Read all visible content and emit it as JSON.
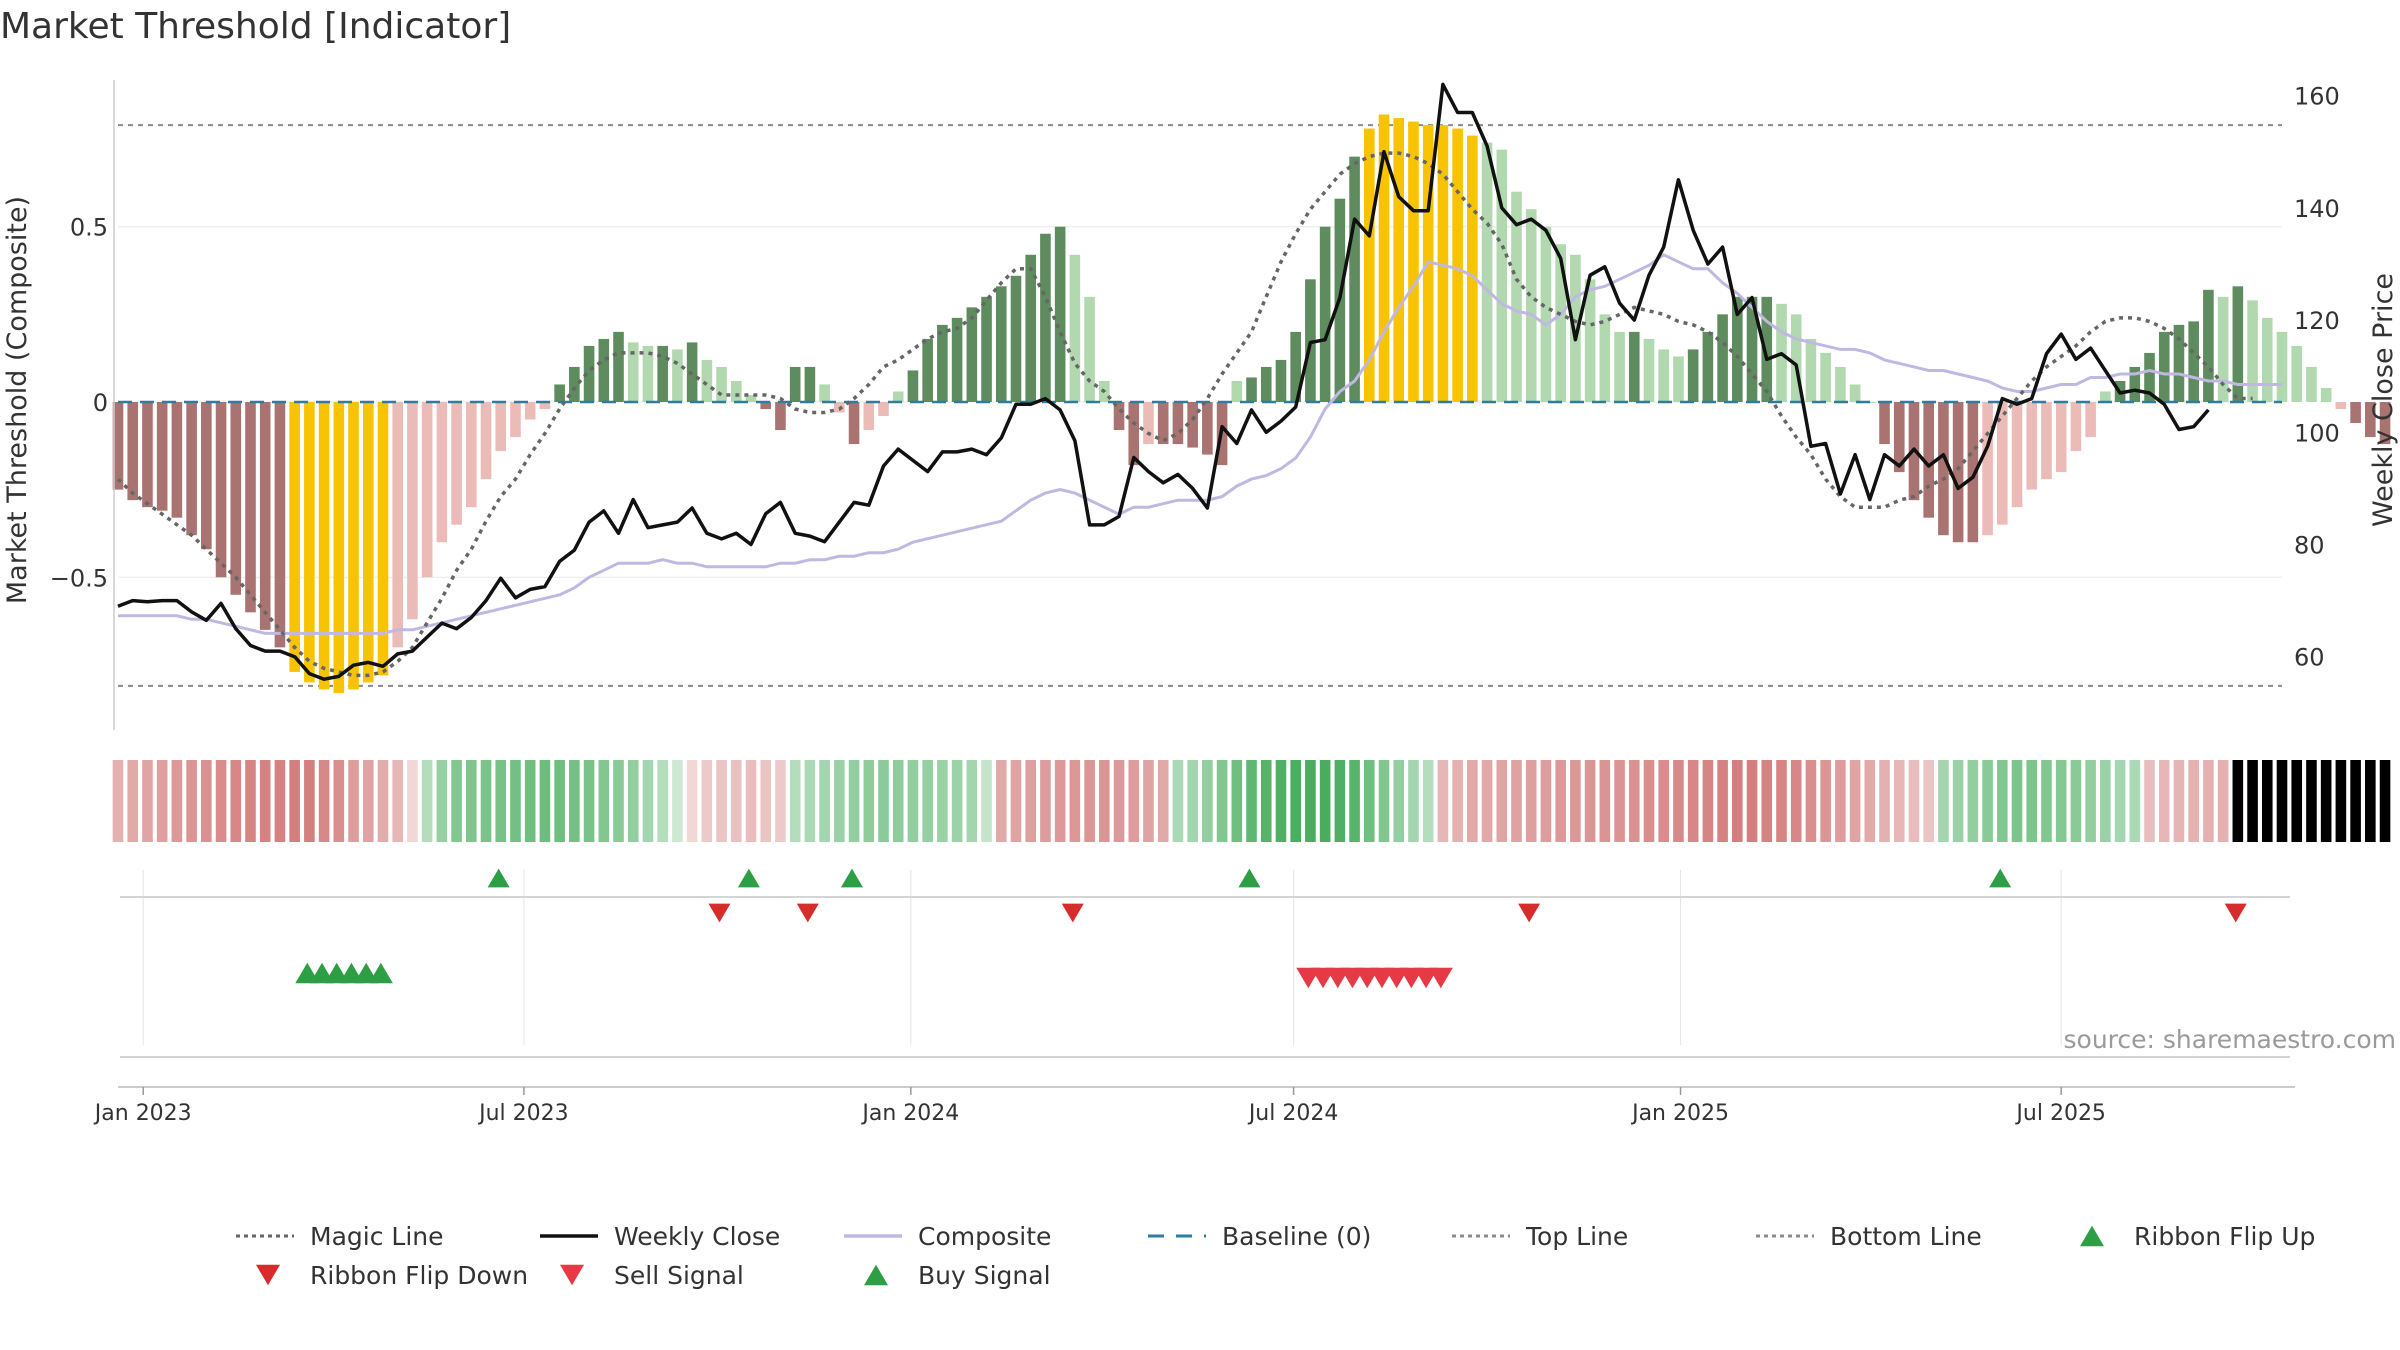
{
  "title": "Market Threshold [Indicator]",
  "source": "source: sharemaestro.com",
  "colors": {
    "bear_dark": "#a87370",
    "bear_light": "#ebbcb7",
    "bull_dark": "#5e8c5e",
    "bull_light": "#b2d8b0",
    "extreme": "#f8c303",
    "close": "#111111",
    "composite": "#c0b8e2",
    "magic": "#666666",
    "baseline": "#2c7da0",
    "ref_line": "#8a8a8a",
    "up_marker": "#2e9e44",
    "down_marker": "#d62c2c",
    "sell_marker": "#e63946"
  },
  "legend": [
    {
      "label": "Magic Line",
      "kind": "dotted",
      "color": "#666666"
    },
    {
      "label": "Weekly Close",
      "kind": "solid",
      "color": "#111111"
    },
    {
      "label": "Composite",
      "kind": "solid",
      "color": "#c0b8e2"
    },
    {
      "label": "Baseline (0)",
      "kind": "dashed",
      "color": "#2c7da0"
    },
    {
      "label": "Top Line",
      "kind": "dotted",
      "color": "#8a8a8a"
    },
    {
      "label": "Bottom Line",
      "kind": "dotted",
      "color": "#8a8a8a"
    },
    {
      "label": "Ribbon Flip Up",
      "kind": "tri-up",
      "color": "#2e9e44"
    },
    {
      "label": "Ribbon Flip Down",
      "kind": "tri-down",
      "color": "#d62c2c"
    },
    {
      "label": "Sell Signal",
      "kind": "tri-down",
      "color": "#e63946"
    },
    {
      "label": "Buy Signal",
      "kind": "tri-up",
      "color": "#2e9e44"
    }
  ],
  "chart_data": {
    "type": "bar",
    "start_date": "2022-12-20",
    "interval_days": 7,
    "ylabel": "Market Threshold (Composite)",
    "y2label": "Weekly Close Price",
    "ylim": [
      -0.93,
      0.93
    ],
    "y2lim": [
      47.3,
      163.5
    ],
    "yticks": [
      0.5,
      0,
      -0.5
    ],
    "ytick_labels": [
      "0.5",
      "0",
      "−0.5"
    ],
    "y2ticks": [
      160,
      140,
      120,
      100,
      80,
      60
    ],
    "xticks": [
      {
        "date": "2023-01-01",
        "label": "Jan 2023"
      },
      {
        "date": "2023-07-01",
        "label": "Jul 2023"
      },
      {
        "date": "2024-01-01",
        "label": "Jan 2024"
      },
      {
        "date": "2024-07-01",
        "label": "Jul 2024"
      },
      {
        "date": "2025-01-01",
        "label": "Jan 2025"
      },
      {
        "date": "2025-07-01",
        "label": "Jul 2025"
      }
    ],
    "top_line": 0.79,
    "bottom_line": -0.81,
    "baseline": 0,
    "series": [
      {
        "name": "Composite",
        "values": [
          -0.25,
          -0.28,
          -0.3,
          -0.31,
          -0.33,
          -0.38,
          -0.42,
          -0.5,
          -0.55,
          -0.6,
          -0.65,
          -0.7,
          -0.77,
          -0.8,
          -0.82,
          -0.83,
          -0.82,
          -0.8,
          -0.78,
          -0.7,
          -0.62,
          -0.5,
          -0.4,
          -0.35,
          -0.3,
          -0.22,
          -0.14,
          -0.1,
          -0.05,
          -0.02,
          0.05,
          0.1,
          0.16,
          0.18,
          0.2,
          0.17,
          0.16,
          0.16,
          0.15,
          0.17,
          0.12,
          0.1,
          0.06,
          0.02,
          -0.02,
          -0.08,
          0.1,
          0.1,
          0.05,
          -0.03,
          -0.12,
          -0.08,
          -0.04,
          0.03,
          0.09,
          0.18,
          0.22,
          0.24,
          0.27,
          0.3,
          0.33,
          0.36,
          0.42,
          0.48,
          0.5,
          0.42,
          0.3,
          0.06,
          -0.08,
          -0.18,
          -0.12,
          -0.12,
          -0.12,
          -0.13,
          -0.15,
          -0.18,
          0.06,
          0.07,
          0.1,
          0.12,
          0.2,
          0.35,
          0.5,
          0.58,
          0.7,
          0.78,
          0.82,
          0.81,
          0.8,
          0.79,
          0.79,
          0.78,
          0.76,
          0.74,
          0.72,
          0.6,
          0.55,
          0.5,
          0.45,
          0.42,
          0.35,
          0.25,
          0.2,
          0.2,
          0.18,
          0.15,
          0.13,
          0.15,
          0.2,
          0.25,
          0.3,
          0.3,
          0.3,
          0.28,
          0.25,
          0.18,
          0.14,
          0.1,
          0.05,
          0,
          -0.12,
          -0.2,
          -0.28,
          -0.33,
          -0.38,
          -0.4,
          -0.4,
          -0.38,
          -0.35,
          -0.3,
          -0.25,
          -0.22,
          -0.2,
          -0.14,
          -0.1,
          0.03,
          0.06,
          0.1,
          0.14,
          0.2,
          0.22,
          0.23,
          0.32,
          0.3,
          0.33,
          0.29,
          0.24,
          0.2,
          0.16,
          0.1,
          0.04,
          -0.02,
          -0.06,
          -0.1,
          -0.12
        ]
      },
      {
        "name": "Weekly Close",
        "values": [
          69,
          70,
          69.8,
          70,
          70,
          68,
          66.5,
          69.5,
          65,
          62,
          61,
          61,
          60,
          57,
          56,
          56.5,
          58.5,
          59,
          58.3,
          60.5,
          61,
          63.5,
          66,
          65,
          67,
          70,
          74,
          70.5,
          72,
          72.5,
          77,
          79,
          84,
          86,
          82,
          88,
          83,
          83.5,
          84,
          86.5,
          82,
          81,
          82,
          80,
          85.5,
          87.5,
          82,
          81.5,
          80.5,
          84,
          87.5,
          87,
          94,
          97,
          95,
          93,
          96.5,
          96.5,
          97,
          96,
          99,
          105,
          105,
          106,
          104,
          98.5,
          83.5,
          83.5,
          85,
          95.5,
          93,
          91,
          92.5,
          90,
          86.5,
          101,
          98,
          104,
          100,
          102,
          104.5,
          116,
          116.5,
          124,
          138,
          135,
          150,
          142,
          139.5,
          139.5,
          162,
          157,
          157,
          151,
          140,
          137,
          138,
          136,
          131,
          116.5,
          128,
          129.5,
          123,
          120,
          128,
          133,
          145,
          136,
          130,
          133,
          121,
          124,
          113,
          114,
          112,
          97.5,
          98,
          89,
          96,
          88,
          96,
          94,
          97,
          94,
          96,
          90,
          92,
          97.5,
          106,
          105,
          106,
          114,
          117.5,
          113,
          115,
          111,
          107,
          107.5,
          107,
          105,
          100.5,
          101,
          104
        ]
      },
      {
        "name": "Magic Line",
        "values": [
          -0.22,
          -0.26,
          -0.29,
          -0.32,
          -0.35,
          -0.38,
          -0.42,
          -0.46,
          -0.5,
          -0.55,
          -0.6,
          -0.65,
          -0.7,
          -0.74,
          -0.76,
          -0.77,
          -0.78,
          -0.78,
          -0.77,
          -0.74,
          -0.7,
          -0.63,
          -0.56,
          -0.48,
          -0.42,
          -0.34,
          -0.27,
          -0.22,
          -0.15,
          -0.09,
          -0.02,
          0.04,
          0.09,
          0.12,
          0.14,
          0.14,
          0.14,
          0.13,
          0.11,
          0.08,
          0.05,
          0.02,
          0.02,
          0.02,
          0.02,
          0.01,
          -0.02,
          -0.03,
          -0.03,
          -0.02,
          0.01,
          0.05,
          0.1,
          0.12,
          0.15,
          0.18,
          0.2,
          0.21,
          0.24,
          0.29,
          0.34,
          0.38,
          0.38,
          0.3,
          0.2,
          0.11,
          0.06,
          0.03,
          -0.02,
          -0.06,
          -0.09,
          -0.11,
          -0.09,
          -0.05,
          0.01,
          0.08,
          0.14,
          0.2,
          0.3,
          0.4,
          0.48,
          0.55,
          0.6,
          0.65,
          0.68,
          0.7,
          0.71,
          0.71,
          0.7,
          0.68,
          0.65,
          0.6,
          0.55,
          0.51,
          0.45,
          0.35,
          0.3,
          0.27,
          0.25,
          0.23,
          0.22,
          0.23,
          0.25,
          0.27,
          0.26,
          0.25,
          0.23,
          0.22,
          0.2,
          0.17,
          0.13,
          0.08,
          0.03,
          -0.04,
          -0.1,
          -0.15,
          -0.22,
          -0.27,
          -0.3,
          -0.3,
          -0.3,
          -0.28,
          -0.27,
          -0.24,
          -0.22,
          -0.19,
          -0.14,
          -0.09,
          -0.04,
          0.01,
          0.06,
          0.1,
          0.13,
          0.16,
          0.2,
          0.23,
          0.24,
          0.24,
          0.23,
          0.21,
          0.18,
          0.14,
          0.1,
          0.05,
          0.01,
          0.01
        ]
      },
      {
        "name": "Composite Smooth",
        "values": [
          -0.61,
          -0.61,
          -0.61,
          -0.61,
          -0.61,
          -0.62,
          -0.62,
          -0.63,
          -0.64,
          -0.65,
          -0.66,
          -0.66,
          -0.66,
          -0.66,
          -0.66,
          -0.66,
          -0.66,
          -0.66,
          -0.66,
          -0.65,
          -0.65,
          -0.64,
          -0.63,
          -0.62,
          -0.61,
          -0.6,
          -0.59,
          -0.58,
          -0.57,
          -0.56,
          -0.55,
          -0.53,
          -0.5,
          -0.48,
          -0.46,
          -0.46,
          -0.46,
          -0.45,
          -0.46,
          -0.46,
          -0.47,
          -0.47,
          -0.47,
          -0.47,
          -0.47,
          -0.46,
          -0.46,
          -0.45,
          -0.45,
          -0.44,
          -0.44,
          -0.43,
          -0.43,
          -0.42,
          -0.4,
          -0.39,
          -0.38,
          -0.37,
          -0.36,
          -0.35,
          -0.34,
          -0.31,
          -0.28,
          -0.26,
          -0.25,
          -0.26,
          -0.28,
          -0.3,
          -0.32,
          -0.3,
          -0.3,
          -0.29,
          -0.28,
          -0.28,
          -0.28,
          -0.27,
          -0.24,
          -0.22,
          -0.21,
          -0.19,
          -0.16,
          -0.1,
          -0.02,
          0.03,
          0.06,
          0.12,
          0.2,
          0.27,
          0.33,
          0.4,
          0.39,
          0.38,
          0.36,
          0.32,
          0.28,
          0.26,
          0.25,
          0.22,
          0.25,
          0.3,
          0.32,
          0.33,
          0.35,
          0.37,
          0.39,
          0.42,
          0.4,
          0.38,
          0.38,
          0.34,
          0.31,
          0.27,
          0.23,
          0.2,
          0.18,
          0.17,
          0.16,
          0.15,
          0.15,
          0.14,
          0.12,
          0.11,
          0.1,
          0.09,
          0.09,
          0.08,
          0.07,
          0.06,
          0.04,
          0.03,
          0.03,
          0.04,
          0.05,
          0.05,
          0.07,
          0.07,
          0.08,
          0.08,
          0.09,
          0.08,
          0.08,
          0.07,
          0.06,
          0.06,
          0.05,
          0.05,
          0.05,
          0.05
        ]
      },
      {
        "name": "Ribbon",
        "values": [
          -0.35,
          -0.4,
          -0.44,
          -0.48,
          -0.52,
          -0.55,
          -0.58,
          -0.62,
          -0.66,
          -0.68,
          -0.7,
          -0.7,
          -0.72,
          -0.72,
          -0.65,
          -0.6,
          -0.5,
          -0.45,
          -0.38,
          -0.3,
          -0.05,
          0.2,
          0.38,
          0.5,
          0.52,
          0.54,
          0.56,
          0.58,
          0.6,
          0.62,
          0.6,
          0.58,
          0.55,
          0.5,
          0.45,
          0.4,
          0.3,
          0.2,
          0.05,
          -0.05,
          -0.15,
          -0.2,
          -0.22,
          -0.25,
          -0.2,
          -0.15,
          0.2,
          0.25,
          0.3,
          0.35,
          0.4,
          0.42,
          0.44,
          0.42,
          0.4,
          0.38,
          0.36,
          0.34,
          0.3,
          0.1,
          -0.4,
          -0.45,
          -0.48,
          -0.5,
          -0.52,
          -0.54,
          -0.55,
          -0.55,
          -0.52,
          -0.5,
          -0.45,
          -0.4,
          0.25,
          0.3,
          0.4,
          0.5,
          0.6,
          0.7,
          0.75,
          0.8,
          0.82,
          0.84,
          0.84,
          0.8,
          0.75,
          0.6,
          0.5,
          0.4,
          0.3,
          0.2,
          -0.3,
          -0.35,
          -0.4,
          -0.42,
          -0.44,
          -0.46,
          -0.48,
          -0.5,
          -0.52,
          -0.54,
          -0.55,
          -0.56,
          -0.57,
          -0.58,
          -0.6,
          -0.62,
          -0.64,
          -0.66,
          -0.68,
          -0.7,
          -0.72,
          -0.72,
          -0.7,
          -0.68,
          -0.66,
          -0.6,
          -0.55,
          -0.5,
          -0.45,
          -0.4,
          -0.35,
          -0.3,
          -0.25,
          -0.2,
          0.3,
          0.35,
          0.4,
          0.45,
          0.5,
          0.52,
          0.52,
          0.5,
          0.48,
          0.45,
          0.4,
          0.35,
          0.3,
          0.25,
          -0.25,
          -0.3,
          -0.32,
          -0.34,
          -0.35,
          -0.35
        ]
      }
    ],
    "ribbon_flip_up": [
      "2023-06-19",
      "2023-10-16",
      "2023-12-04",
      "2024-06-10",
      "2025-06-02"
    ],
    "ribbon_flip_down": [
      "2023-10-02",
      "2023-11-13",
      "2024-03-18",
      "2024-10-21",
      "2025-09-22"
    ],
    "buy_signal": [
      "2023-03-20",
      "2023-03-27",
      "2023-04-03",
      "2023-04-10",
      "2023-04-17",
      "2023-04-24"
    ],
    "sell_signal": [
      "2024-07-08",
      "2024-07-15",
      "2024-07-22",
      "2024-07-29",
      "2024-08-05",
      "2024-08-12",
      "2024-08-19",
      "2024-08-26",
      "2024-09-02",
      "2024-09-09"
    ]
  }
}
